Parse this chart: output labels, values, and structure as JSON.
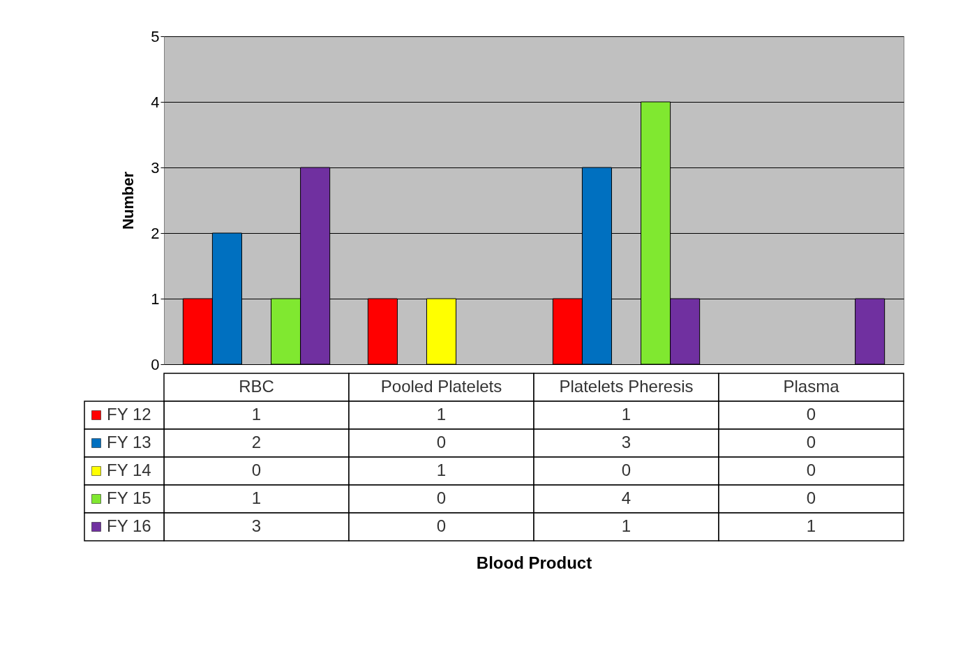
{
  "chart_data": {
    "type": "bar",
    "annotations": [
      "Blood Product"
    ],
    "ylabel": "Number",
    "categories": [
      "RBC",
      "Pooled Platelets",
      "Platelets Pheresis",
      "Plasma"
    ],
    "series": [
      {
        "name": "FY 12",
        "color": "#ff0000",
        "values": [
          1,
          1,
          1,
          0
        ]
      },
      {
        "name": "FY 13",
        "color": "#0070c0",
        "values": [
          2,
          0,
          3,
          0
        ]
      },
      {
        "name": "FY 14",
        "color": "#ffff00",
        "values": [
          0,
          1,
          0,
          0
        ]
      },
      {
        "name": "FY 15",
        "color": "#80e830",
        "values": [
          1,
          0,
          4,
          0
        ]
      },
      {
        "name": "FY 16",
        "color": "#7030a0",
        "values": [
          3,
          0,
          1,
          1
        ]
      }
    ],
    "ylim": [
      0,
      5
    ],
    "yticks": [
      0,
      1,
      2,
      3,
      4,
      5
    ],
    "grid": "y",
    "legend": "bottom",
    "data_labels": true
  }
}
